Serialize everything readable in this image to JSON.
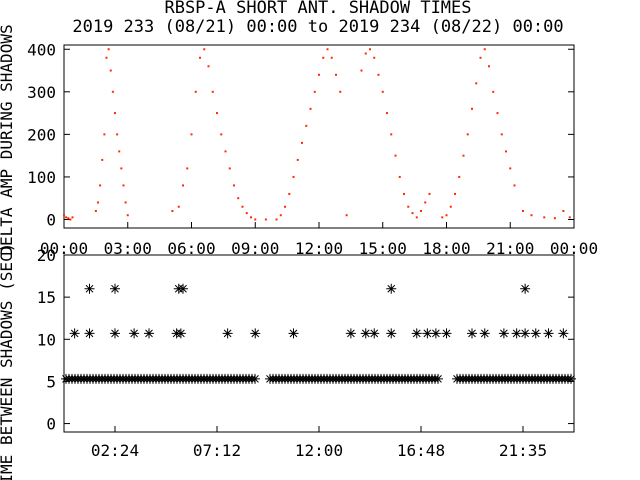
{
  "title_line1": "RBSP-A SHORT ANT. SHADOW TIMES",
  "title_line2": "2019 233 (08/21) 00:00 to 2019 234 (08/22) 00:00",
  "chart_data": [
    {
      "type": "scatter",
      "ylabel": "DELTA AMP DURING SHADOWS",
      "xlim": [
        0,
        24
      ],
      "ylim": [
        -20,
        410
      ],
      "xticks": [
        "00:00",
        "03:00",
        "06:00",
        "09:00",
        "12:00",
        "15:00",
        "18:00",
        "21:00",
        "00:00"
      ],
      "yticks": [
        0,
        100,
        200,
        300,
        400
      ],
      "color": "#ff2a00",
      "series": [
        {
          "x": [
            0.0,
            0.1,
            0.2,
            0.3,
            0.4,
            1.5,
            1.6,
            1.7,
            1.8,
            1.9,
            2.0,
            2.1,
            2.2,
            2.3,
            2.4,
            2.5,
            2.6,
            2.7,
            2.8,
            2.9,
            3.0,
            5.1,
            5.4,
            5.6,
            5.8,
            6.0,
            6.2,
            6.4,
            6.6,
            6.8,
            7.0,
            7.2,
            7.4,
            7.6,
            7.8,
            8.0,
            8.2,
            8.4,
            8.6,
            8.8,
            9.0,
            9.5,
            10.0,
            10.2,
            10.4,
            10.6,
            10.8,
            11.0,
            11.2,
            11.4,
            11.6,
            11.8,
            12.0,
            12.2,
            12.4,
            12.6,
            12.8,
            13.0,
            13.3,
            14.0,
            14.2,
            14.4,
            14.6,
            14.8,
            15.0,
            15.2,
            15.4,
            15.6,
            15.8,
            16.0,
            16.2,
            16.4,
            16.6,
            16.8,
            17.0,
            17.2,
            17.8,
            18.0,
            18.2,
            18.4,
            18.6,
            18.8,
            19.0,
            19.2,
            19.4,
            19.6,
            19.8,
            20.0,
            20.2,
            20.4,
            20.6,
            20.8,
            21.0,
            21.2,
            21.6,
            22.0,
            22.6,
            23.1,
            23.5,
            23.8
          ],
          "y": [
            10,
            5,
            3,
            0,
            5,
            20,
            40,
            80,
            140,
            200,
            380,
            400,
            350,
            300,
            250,
            200,
            160,
            120,
            80,
            40,
            10,
            20,
            30,
            80,
            120,
            200,
            300,
            380,
            400,
            360,
            300,
            250,
            200,
            160,
            120,
            80,
            50,
            30,
            15,
            5,
            0,
            0,
            0,
            10,
            30,
            60,
            100,
            140,
            180,
            220,
            260,
            300,
            340,
            380,
            400,
            380,
            340,
            300,
            10,
            350,
            390,
            400,
            380,
            340,
            300,
            250,
            200,
            150,
            100,
            60,
            30,
            15,
            5,
            20,
            40,
            60,
            5,
            10,
            30,
            60,
            100,
            150,
            200,
            260,
            320,
            380,
            400,
            360,
            300,
            250,
            200,
            160,
            120,
            80,
            20,
            10,
            5,
            3,
            20,
            5
          ]
        }
      ]
    },
    {
      "type": "scatter",
      "ylabel": "TIME BETWEEN SHADOWS (SEC)",
      "xlim": [
        0,
        24
      ],
      "ylim": [
        -1,
        20
      ],
      "xticks": [
        "02:24",
        "07:12",
        "12:00",
        "16:48",
        "21:35"
      ],
      "yticks": [
        0,
        5,
        10,
        15,
        20
      ],
      "color": "#000000",
      "series": [
        {
          "x": [
            0.5,
            1.2,
            2.4,
            3.3,
            4.0,
            5.3,
            5.5,
            7.7,
            9.0,
            10.8,
            13.5,
            14.2,
            14.6,
            15.4,
            16.6,
            17.1,
            17.5,
            18.0,
            19.2,
            19.8,
            20.7,
            21.3,
            21.7,
            22.2,
            22.8,
            23.5,
            1.2,
            2.4,
            5.4,
            5.6,
            15.4,
            21.7
          ],
          "y": [
            10.7,
            10.7,
            10.7,
            10.7,
            10.7,
            10.7,
            10.7,
            10.7,
            10.7,
            10.7,
            10.7,
            10.7,
            10.7,
            10.7,
            10.7,
            10.7,
            10.7,
            10.7,
            10.7,
            10.7,
            10.7,
            10.7,
            10.7,
            10.7,
            10.7,
            10.7,
            16,
            16,
            16,
            16,
            16,
            16
          ]
        },
        {
          "x_segments": [
            [
              0,
              9.2
            ],
            [
              9.6,
              17.7
            ],
            [
              18.4,
              24
            ]
          ],
          "y": 5.3
        }
      ]
    }
  ]
}
